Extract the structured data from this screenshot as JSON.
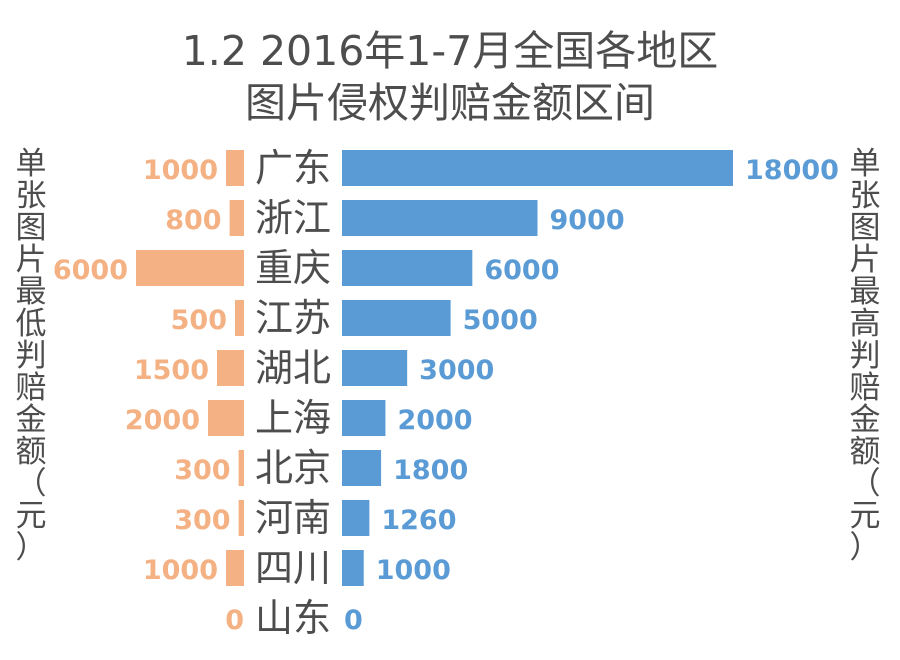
{
  "title_line1": "1.2 2016年1-7月全国各地区",
  "title_line2": "图片侵权判赔金额区间",
  "left_axis_label": "单张图片最低判赔金额（元）",
  "right_axis_label": "单张图片最高判赔金额（元）",
  "colors": {
    "min_bar": "#f4b183",
    "max_bar": "#5b9bd5",
    "min_text": "#f4b183",
    "max_text": "#5b9bd5",
    "region_text": "#4d4d4d"
  },
  "chart_data": {
    "type": "bar",
    "orientation": "horizontal-diverging",
    "categories": [
      "广东",
      "浙江",
      "重庆",
      "江苏",
      "湖北",
      "上海",
      "北京",
      "河南",
      "四川",
      "山东"
    ],
    "series": [
      {
        "name": "单张图片最低判赔金额（元）",
        "values": [
          1000,
          800,
          6000,
          500,
          1500,
          2000,
          300,
          300,
          1000,
          0
        ]
      },
      {
        "name": "单张图片最高判赔金额（元）",
        "values": [
          18000,
          9000,
          6000,
          5000,
          3000,
          2000,
          1800,
          1260,
          1000,
          0
        ]
      }
    ],
    "data_labels": true,
    "grid": false
  }
}
